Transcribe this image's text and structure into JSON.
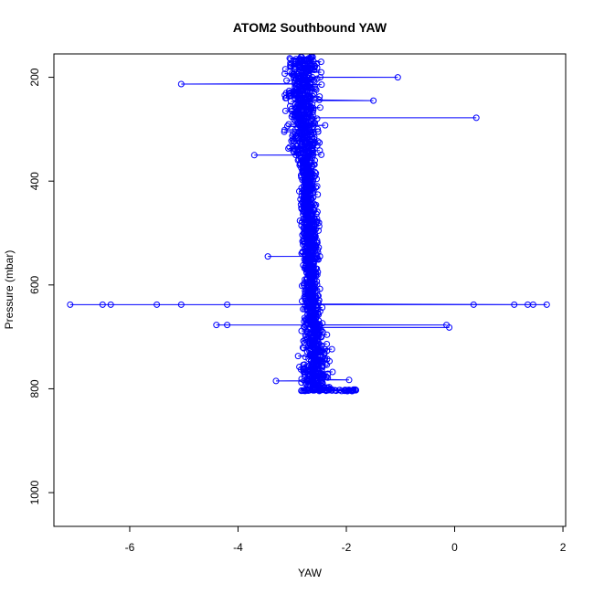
{
  "chart_data": {
    "type": "scatter",
    "title": "ATOM2 Southbound YAW",
    "xlabel": "YAW",
    "ylabel": "Pressure (mbar)",
    "xlim": [
      -7.4,
      2.05
    ],
    "ylim": [
      1065,
      155
    ],
    "y_reversed": true,
    "x_ticks": [
      -6,
      -4,
      -2,
      0,
      2
    ],
    "y_ticks": [
      200,
      400,
      600,
      800,
      1000
    ],
    "grid": false,
    "legend": "none",
    "colors": {
      "series": "#0000ff",
      "axis": "#000000"
    },
    "series": [
      {
        "marker": "open-circle",
        "line": true,
        "profile_center": [
          {
            "pressure": 160,
            "yaw": -2.8
          },
          {
            "pressure": 250,
            "yaw": -2.8
          },
          {
            "pressure": 350,
            "yaw": -2.75
          },
          {
            "pressure": 450,
            "yaw": -2.7
          },
          {
            "pressure": 550,
            "yaw": -2.65
          },
          {
            "pressure": 620,
            "yaw": -2.65
          },
          {
            "pressure": 700,
            "yaw": -2.6
          },
          {
            "pressure": 780,
            "yaw": -2.55
          },
          {
            "pressure": 803,
            "yaw": -2.5
          }
        ],
        "outliers": [
          {
            "pressure": 213,
            "yaw": -5.05
          },
          {
            "pressure": 278,
            "yaw": 0.4
          },
          {
            "pressure": 200,
            "yaw": -1.05
          },
          {
            "pressure": 245,
            "yaw": -1.5
          },
          {
            "pressure": 350,
            "yaw": -3.7
          },
          {
            "pressure": 545,
            "yaw": -3.45
          },
          {
            "pressure": 638,
            "yaw": -7.1
          },
          {
            "pressure": 638,
            "yaw": -6.5
          },
          {
            "pressure": 638,
            "yaw": -6.35
          },
          {
            "pressure": 638,
            "yaw": -5.5
          },
          {
            "pressure": 638,
            "yaw": -5.05
          },
          {
            "pressure": 638,
            "yaw": -4.2
          },
          {
            "pressure": 638,
            "yaw": 0.35
          },
          {
            "pressure": 638,
            "yaw": 1.1
          },
          {
            "pressure": 638,
            "yaw": 1.35
          },
          {
            "pressure": 638,
            "yaw": 1.45
          },
          {
            "pressure": 638,
            "yaw": 1.7
          },
          {
            "pressure": 677,
            "yaw": -4.4
          },
          {
            "pressure": 677,
            "yaw": -4.2
          },
          {
            "pressure": 677,
            "yaw": -0.15
          },
          {
            "pressure": 682,
            "yaw": -0.1
          },
          {
            "pressure": 785,
            "yaw": -3.3
          },
          {
            "pressure": 783,
            "yaw": -1.95
          }
        ]
      }
    ]
  }
}
